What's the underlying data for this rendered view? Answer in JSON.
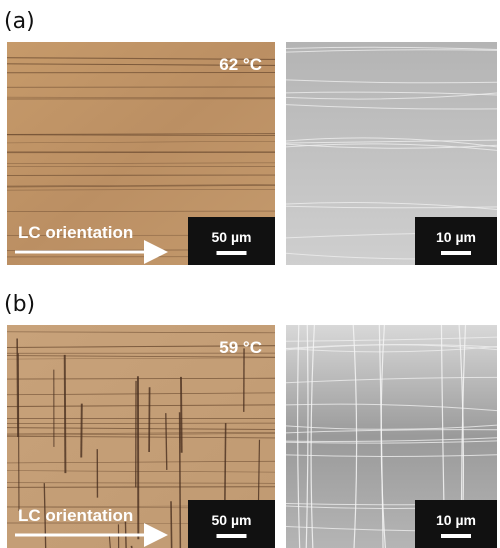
{
  "panels": [
    {
      "label": "(a)",
      "temperature": "62 °C",
      "orientation": "LC orientation",
      "optical_scale": "50 µm",
      "sem_scale": "10 µm"
    },
    {
      "label": "(b)",
      "temperature": "59 °C",
      "orientation": "LC orientation",
      "optical_scale": "50 µm",
      "sem_scale": "10 µm"
    }
  ]
}
